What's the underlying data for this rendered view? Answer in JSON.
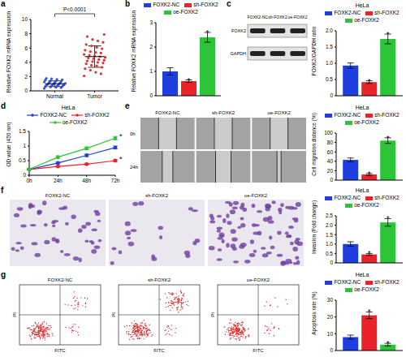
{
  "panel_labels": [
    "a",
    "b",
    "c",
    "d",
    "e",
    "f",
    "g"
  ],
  "chart_data": [
    {
      "type": "scatter",
      "y_label": "Relative FOXK2 mRNA expression",
      "xlim": [
        0.4,
        2.6
      ],
      "xticks": [
        {
          "value": 1,
          "label": "Normal"
        },
        {
          "value": 2,
          "label": "Tumor"
        }
      ],
      "ylim": [
        0,
        10
      ],
      "yticks": [
        0,
        2,
        4,
        6,
        8,
        10
      ],
      "grid": false,
      "annotations": [
        {
          "text": "P<0.0001"
        }
      ],
      "series": [
        {
          "color": "#3050d8",
          "x": 1,
          "values": [
            0.35,
            0.45,
            0.5,
            0.55,
            0.6,
            0.62,
            0.65,
            0.7,
            0.72,
            0.78,
            0.8,
            0.85,
            0.88,
            0.9,
            0.95,
            1.0,
            1.02,
            1.05,
            1.1,
            1.15,
            1.2,
            1.25,
            1.3,
            1.35,
            1.4,
            1.5,
            1.55,
            1.6,
            1.7,
            1.75
          ],
          "mean": 1.0,
          "sd": 0.4
        },
        {
          "color": "#e03030",
          "x": 2,
          "values": [
            2.1,
            2.4,
            2.6,
            2.9,
            3.1,
            3.3,
            3.5,
            3.6,
            3.8,
            3.9,
            4.0,
            4.1,
            4.2,
            4.3,
            4.4,
            4.5,
            4.6,
            4.7,
            4.8,
            4.9,
            5.0,
            5.1,
            5.3,
            5.4,
            5.5,
            5.7,
            5.9,
            6.1,
            6.3,
            6.5,
            6.8,
            7.0,
            7.2,
            7.6,
            7.9
          ],
          "mean": 4.8,
          "sd": 1.5
        }
      ]
    },
    {
      "type": "bar",
      "y_label": "Relative FOXK2 mRNA expression",
      "categories": [
        null
      ],
      "ylim": [
        0,
        3
      ],
      "yticks": [
        0,
        1,
        2,
        3
      ],
      "grid": false,
      "legend": "top",
      "tick_labels": "y",
      "annotations": [
        {
          "series": "sh-FOXK2",
          "text": "*"
        },
        {
          "series": "oe-FOXK2",
          "text": "*"
        }
      ],
      "series": [
        {
          "name": "FOXK2-NC",
          "color": "#1f3ee0",
          "values": [
            1.0
          ],
          "errors": [
            0.15
          ]
        },
        {
          "name": "sh-FOXK2",
          "color": "#e8232a",
          "values": [
            0.6
          ],
          "errors": [
            0.05
          ]
        },
        {
          "name": "oe-FOXK2",
          "color": "#2ec43a",
          "values": [
            2.4
          ],
          "errors": [
            0.2
          ]
        }
      ]
    },
    {
      "type": "bar",
      "title": "HeLa",
      "y_label": "FOXK2/GAPDH ratio",
      "categories": [
        null
      ],
      "ylim": [
        0,
        2
      ],
      "yticks": [
        0,
        0.5,
        {
          "value": 1,
          "label": "1.0"
        },
        1.5,
        {
          "value": 2,
          "label": "2.0"
        }
      ],
      "grid": false,
      "legend": "top",
      "tick_labels": "y",
      "annotations": [
        {
          "series": "sh-FOXK2",
          "text": "*"
        },
        {
          "series": "oe-FOXK2",
          "text": "*"
        }
      ],
      "series": [
        {
          "name": "FOXK2-NC",
          "color": "#1f3ee0",
          "values": [
            0.93
          ],
          "errors": [
            0.08
          ]
        },
        {
          "name": "sh-FOXK2",
          "color": "#e8232a",
          "values": [
            0.42
          ],
          "errors": [
            0.04
          ]
        },
        {
          "name": "oe-FOXK2",
          "color": "#2ec43a",
          "values": [
            1.75
          ],
          "errors": [
            0.15
          ]
        }
      ]
    },
    {
      "type": "line",
      "title": "HeLa",
      "y_label": "OD value (450 nm)",
      "categories": [
        "0h",
        "24h",
        "48h",
        "72h"
      ],
      "ylim": [
        0,
        1.5
      ],
      "yticks": [
        0,
        0.5,
        1,
        1.5
      ],
      "grid": false,
      "legend": "top",
      "marker": "circle",
      "annotations": [
        {
          "series": "sh-FOXK2",
          "category": "72h",
          "text": "*"
        },
        {
          "series": "oe-FOXK2",
          "category": "72h",
          "text": "*"
        }
      ],
      "series": [
        {
          "name": "FOXK2-NC",
          "color": "#1f3ee0",
          "values": [
            0.2,
            0.42,
            0.68,
            0.95
          ],
          "errors": [
            0.02,
            0.03,
            0.04,
            0.05
          ]
        },
        {
          "name": "sh-FOXK2",
          "color": "#e8232a",
          "values": [
            0.2,
            0.3,
            0.38,
            0.5
          ],
          "errors": [
            0.02,
            0.02,
            0.03,
            0.03
          ]
        },
        {
          "name": "oe-FOXK2",
          "color": "#2ec43a",
          "values": [
            0.2,
            0.62,
            0.92,
            1.27
          ],
          "errors": [
            0.02,
            0.04,
            0.05,
            0.06
          ]
        }
      ]
    },
    {
      "type": "bar",
      "title": "HeLa",
      "y_label": "Cell migration distance (%)",
      "categories": [
        null
      ],
      "ylim": [
        0,
        100
      ],
      "yticks": [
        0,
        20,
        40,
        60,
        80,
        100
      ],
      "grid": false,
      "legend": "top",
      "tick_labels": "y",
      "annotations": [
        {
          "series": "sh-FOXK2",
          "text": "*"
        },
        {
          "series": "oe-FOXK2",
          "text": "*"
        }
      ],
      "series": [
        {
          "name": "FOXK2-NC",
          "color": "#1f3ee0",
          "values": [
            43
          ],
          "errors": [
            4
          ]
        },
        {
          "name": "sh-FOXK2",
          "color": "#e8232a",
          "values": [
            12
          ],
          "errors": [
            2
          ]
        },
        {
          "name": "oe-FOXK2",
          "color": "#2ec43a",
          "values": [
            84
          ],
          "errors": [
            6
          ]
        }
      ]
    },
    {
      "type": "bar",
      "title": "HeLa",
      "y_label": "Invasion (Fold change)",
      "categories": [
        null
      ],
      "ylim": [
        0,
        2.5
      ],
      "yticks": [
        0,
        0.5,
        {
          "value": 1,
          "label": "1.0"
        },
        1.5,
        {
          "value": 2,
          "label": "2.0"
        },
        2.5
      ],
      "grid": false,
      "legend": "top",
      "tick_labels": "y",
      "annotations": [
        {
          "series": "sh-FOXK2",
          "text": "*"
        },
        {
          "series": "oe-FOXK2",
          "text": "*"
        }
      ],
      "series": [
        {
          "name": "FOXK2-NC",
          "color": "#1f3ee0",
          "values": [
            1.0
          ],
          "errors": [
            0.12
          ]
        },
        {
          "name": "sh-FOXK2",
          "color": "#e8232a",
          "values": [
            0.45
          ],
          "errors": [
            0.05
          ]
        },
        {
          "name": "oe-FOXK2",
          "color": "#2ec43a",
          "values": [
            2.15
          ],
          "errors": [
            0.2
          ]
        }
      ]
    },
    {
      "type": "bar",
      "title": "HeLa",
      "y_label": "Apoptosis rate (%)",
      "categories": [
        null
      ],
      "ylim": [
        0,
        30
      ],
      "yticks": [
        0,
        10,
        20,
        30
      ],
      "grid": false,
      "legend": "top",
      "tick_labels": "y",
      "annotations": [
        {
          "series": "sh-FOXK2",
          "text": "*"
        },
        {
          "series": "oe-FOXK2",
          "text": "*"
        }
      ],
      "series": [
        {
          "name": "FOXK2-NC",
          "color": "#1f3ee0",
          "values": [
            8
          ],
          "errors": [
            1.2
          ]
        },
        {
          "name": "sh-FOXK2",
          "color": "#e8232a",
          "values": [
            21
          ],
          "errors": [
            2
          ]
        },
        {
          "name": "oe-FOXK2",
          "color": "#2ec43a",
          "values": [
            3.5
          ],
          "errors": [
            0.8
          ]
        }
      ]
    }
  ],
  "images": {
    "c": {
      "rows": [
        "FOXK2",
        "GAPDH"
      ],
      "columns": [
        "FOXK2-NC",
        "sh-FOXK2",
        "oe-FOXK2"
      ]
    },
    "e": {
      "rows": [
        "0h",
        "24h"
      ],
      "columns": [
        "FOXK2-NC",
        "sh-FOXK2",
        "oe-FOXK2"
      ]
    },
    "f": {
      "columns": [
        "FOXK2-NC",
        "sh-FOXK2",
        "oe-FOXK2"
      ]
    },
    "g": {
      "columns": [
        "FOXK2-NC",
        "sh-FOXK2",
        "oe-FOXK2"
      ],
      "x_label": "FITC",
      "y_label": "PI"
    }
  }
}
